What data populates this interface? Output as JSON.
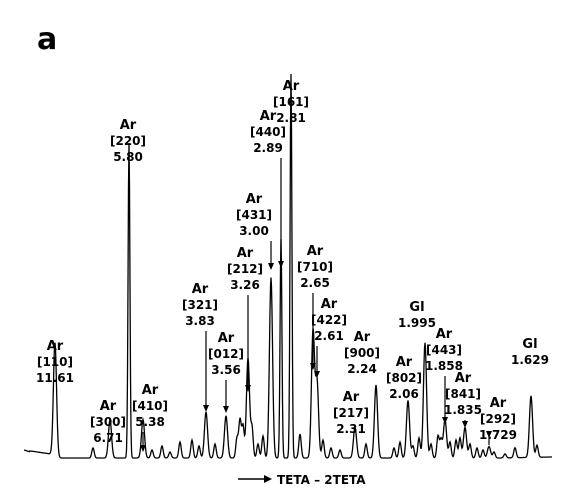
{
  "chart_data": {
    "type": "line",
    "panel_label": "a",
    "xlabel": "TETA – 2TETA",
    "ylabel": "",
    "title": "",
    "grid": false,
    "legend": "none",
    "peaks": [
      {
        "phase": "Ar",
        "hkl": "[110]",
        "d": "11.61",
        "height": 0.3
      },
      {
        "phase": "Ar",
        "hkl": "[300]",
        "d": "6.71",
        "height": 0.1
      },
      {
        "phase": "Ar",
        "hkl": "[220]",
        "d": "5.80",
        "height": 0.82
      },
      {
        "phase": "Ar",
        "hkl": "[410]",
        "d": "5.38",
        "height": 0.1
      },
      {
        "phase": "Ar",
        "hkl": "[321]",
        "d": "3.83",
        "height": 0.12
      },
      {
        "phase": "Ar",
        "hkl": "[012]",
        "d": "3.56",
        "height": 0.11
      },
      {
        "phase": "Ar",
        "hkl": "[212]",
        "d": "3.26",
        "height": 0.26
      },
      {
        "phase": "Ar",
        "hkl": "[431]",
        "d": "3.00",
        "height": 0.47
      },
      {
        "phase": "Ar",
        "hkl": "[440]",
        "d": "2.89",
        "height": 0.57
      },
      {
        "phase": "Ar",
        "hkl": "[161]",
        "d": "2.81",
        "height": 1.0
      },
      {
        "phase": "Ar",
        "hkl": "[710]",
        "d": "2.65",
        "height": 0.33
      },
      {
        "phase": "Ar",
        "hkl": "[422]",
        "d": "2.61",
        "height": 0.2
      },
      {
        "phase": "Ar",
        "hkl": "[900]",
        "d": "2.24",
        "height": 0.19
      },
      {
        "phase": "Ar",
        "hkl": "[217]",
        "d": "2.31",
        "height": 0.08
      },
      {
        "phase": "Ar",
        "hkl": "[802]",
        "d": "2.06",
        "height": 0.15
      },
      {
        "phase": "Gl",
        "hkl": "",
        "d": "1.995",
        "height": 0.3
      },
      {
        "phase": "Ar",
        "hkl": "[443]",
        "d": "1.858",
        "height": 0.1
      },
      {
        "phase": "Ar",
        "hkl": "[841]",
        "d": "1.835",
        "height": 0.08
      },
      {
        "phase": "Ar",
        "hkl": "[292]",
        "d": "1.729",
        "height": 0.03
      },
      {
        "phase": "Gl",
        "hkl": "",
        "d": "1.629",
        "height": 0.16
      }
    ]
  }
}
